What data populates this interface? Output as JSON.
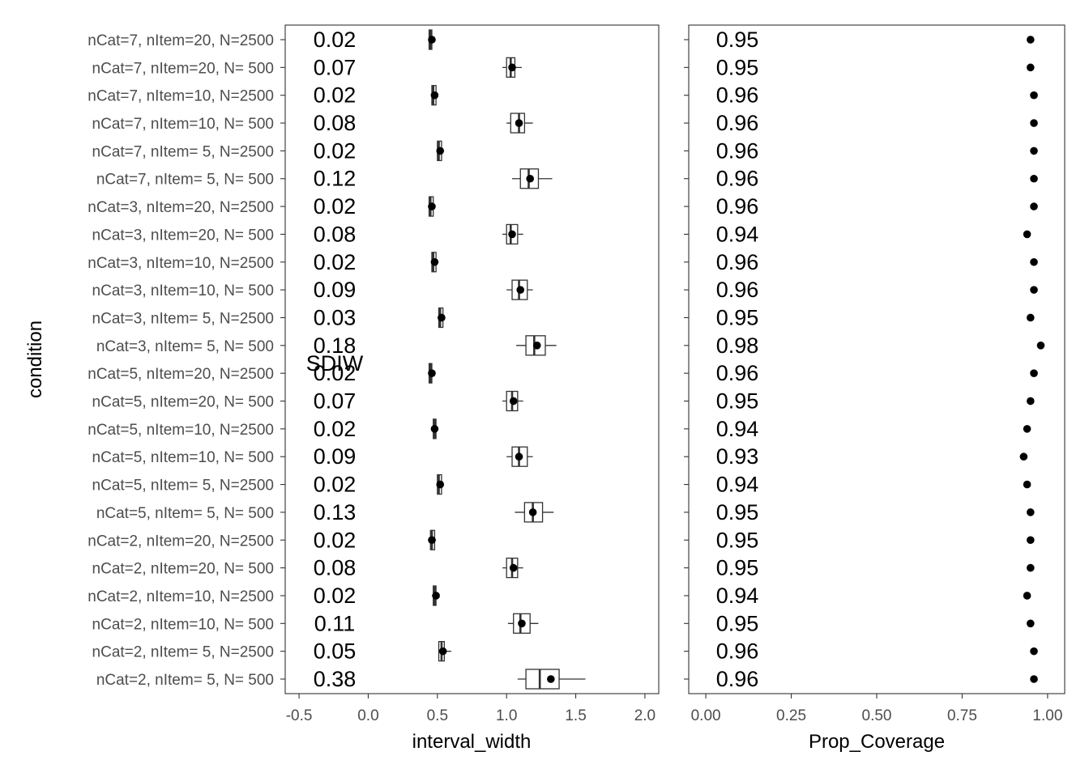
{
  "chart_data": [
    {
      "type": "boxplot",
      "xlabel": "interval_width",
      "ylabel": "condition",
      "xlim": [
        -0.6,
        2.1
      ],
      "xticks": [
        "-0.5",
        "0.0",
        "0.5",
        "1.0",
        "1.5",
        "2.0"
      ],
      "annotation_header": "SDIW",
      "grid": false,
      "categories": [
        "nCat=7, nItem=20, N=2500",
        "nCat=7, nItem=20, N=  500",
        "nCat=7, nItem=10, N=2500",
        "nCat=7, nItem=10, N=  500",
        "nCat=7, nItem=  5, N=2500",
        "nCat=7, nItem=  5, N=  500",
        "nCat=3, nItem=20, N=2500",
        "nCat=3, nItem=20, N=  500",
        "nCat=3, nItem=10, N=2500",
        "nCat=3, nItem=10, N=  500",
        "nCat=3, nItem=  5, N=2500",
        "nCat=3, nItem=  5, N=  500",
        "nCat=5, nItem=20, N=2500",
        "nCat=5, nItem=20, N=  500",
        "nCat=5, nItem=10, N=2500",
        "nCat=5, nItem=10, N=  500",
        "nCat=5, nItem=  5, N=2500",
        "nCat=5, nItem=  5, N=  500",
        "nCat=2, nItem=20, N=2500",
        "nCat=2, nItem=20, N=  500",
        "nCat=2, nItem=10, N=2500",
        "nCat=2, nItem=10, N=  500",
        "nCat=2, nItem=  5, N=2500",
        "nCat=2, nItem=  5, N=  500"
      ],
      "sd_labels": [
        "0.02",
        "0.07",
        "0.02",
        "0.08",
        "0.02",
        "0.12",
        "0.02",
        "0.08",
        "0.02",
        "0.09",
        "0.03",
        "0.18",
        "0.02",
        "0.07",
        "0.02",
        "0.09",
        "0.02",
        "0.13",
        "0.02",
        "0.08",
        "0.02",
        "0.11",
        "0.05",
        "0.38"
      ],
      "boxes": [
        {
          "wmin": 0.44,
          "q1": 0.44,
          "median": 0.45,
          "q3": 0.46,
          "wmax": 0.47,
          "mean": 0.46
        },
        {
          "wmin": 0.97,
          "q1": 1.0,
          "median": 1.03,
          "q3": 1.06,
          "wmax": 1.11,
          "mean": 1.04
        },
        {
          "wmin": 0.46,
          "q1": 0.46,
          "median": 0.47,
          "q3": 0.49,
          "wmax": 0.5,
          "mean": 0.48
        },
        {
          "wmin": 1.0,
          "q1": 1.03,
          "median": 1.09,
          "q3": 1.13,
          "wmax": 1.19,
          "mean": 1.09
        },
        {
          "wmin": 0.5,
          "q1": 0.5,
          "median": 0.51,
          "q3": 0.53,
          "wmax": 0.54,
          "mean": 0.52
        },
        {
          "wmin": 1.04,
          "q1": 1.1,
          "median": 1.16,
          "q3": 1.23,
          "wmax": 1.33,
          "mean": 1.17
        },
        {
          "wmin": 0.44,
          "q1": 0.44,
          "median": 0.45,
          "q3": 0.47,
          "wmax": 0.48,
          "mean": 0.46
        },
        {
          "wmin": 0.97,
          "q1": 1.0,
          "median": 1.03,
          "q3": 1.08,
          "wmax": 1.12,
          "mean": 1.04
        },
        {
          "wmin": 0.46,
          "q1": 0.46,
          "median": 0.47,
          "q3": 0.49,
          "wmax": 0.5,
          "mean": 0.48
        },
        {
          "wmin": 1.0,
          "q1": 1.04,
          "median": 1.09,
          "q3": 1.15,
          "wmax": 1.19,
          "mean": 1.1
        },
        {
          "wmin": 0.5,
          "q1": 0.51,
          "median": 0.52,
          "q3": 0.54,
          "wmax": 0.55,
          "mean": 0.53
        },
        {
          "wmin": 1.07,
          "q1": 1.14,
          "median": 1.2,
          "q3": 1.28,
          "wmax": 1.36,
          "mean": 1.22
        },
        {
          "wmin": 0.44,
          "q1": 0.44,
          "median": 0.45,
          "q3": 0.46,
          "wmax": 0.47,
          "mean": 0.46
        },
        {
          "wmin": 0.97,
          "q1": 1.0,
          "median": 1.04,
          "q3": 1.08,
          "wmax": 1.12,
          "mean": 1.05
        },
        {
          "wmin": 0.46,
          "q1": 0.47,
          "median": 0.48,
          "q3": 0.49,
          "wmax": 0.5,
          "mean": 0.48
        },
        {
          "wmin": 1.0,
          "q1": 1.04,
          "median": 1.09,
          "q3": 1.15,
          "wmax": 1.19,
          "mean": 1.09
        },
        {
          "wmin": 0.5,
          "q1": 0.5,
          "median": 0.51,
          "q3": 0.53,
          "wmax": 0.54,
          "mean": 0.52
        },
        {
          "wmin": 1.06,
          "q1": 1.13,
          "median": 1.19,
          "q3": 1.26,
          "wmax": 1.34,
          "mean": 1.19
        },
        {
          "wmin": 0.44,
          "q1": 0.45,
          "median": 0.46,
          "q3": 0.48,
          "wmax": 0.49,
          "mean": 0.46
        },
        {
          "wmin": 0.97,
          "q1": 1.0,
          "median": 1.04,
          "q3": 1.08,
          "wmax": 1.12,
          "mean": 1.05
        },
        {
          "wmin": 0.46,
          "q1": 0.47,
          "median": 0.48,
          "q3": 0.49,
          "wmax": 0.5,
          "mean": 0.49
        },
        {
          "wmin": 1.01,
          "q1": 1.05,
          "median": 1.1,
          "q3": 1.17,
          "wmax": 1.23,
          "mean": 1.11
        },
        {
          "wmin": 0.51,
          "q1": 0.51,
          "median": 0.53,
          "q3": 0.55,
          "wmax": 0.6,
          "mean": 0.54
        },
        {
          "wmin": 1.08,
          "q1": 1.14,
          "median": 1.24,
          "q3": 1.38,
          "wmax": 1.57,
          "mean": 1.32
        }
      ]
    },
    {
      "type": "scatter",
      "xlabel": "Prop_Coverage",
      "xlim": [
        -0.05,
        1.05
      ],
      "xticks": [
        "0.00",
        "0.25",
        "0.50",
        "0.75",
        "1.00"
      ],
      "grid": false,
      "coverage_labels": [
        "0.95",
        "0.95",
        "0.96",
        "0.96",
        "0.96",
        "0.96",
        "0.96",
        "0.94",
        "0.96",
        "0.96",
        "0.95",
        "0.98",
        "0.96",
        "0.95",
        "0.94",
        "0.93",
        "0.94",
        "0.95",
        "0.95",
        "0.95",
        "0.94",
        "0.95",
        "0.96",
        "0.96"
      ],
      "values": [
        0.95,
        0.95,
        0.96,
        0.96,
        0.96,
        0.96,
        0.96,
        0.94,
        0.96,
        0.96,
        0.95,
        0.98,
        0.96,
        0.95,
        0.94,
        0.93,
        0.94,
        0.95,
        0.95,
        0.95,
        0.94,
        0.95,
        0.96,
        0.96
      ]
    }
  ]
}
